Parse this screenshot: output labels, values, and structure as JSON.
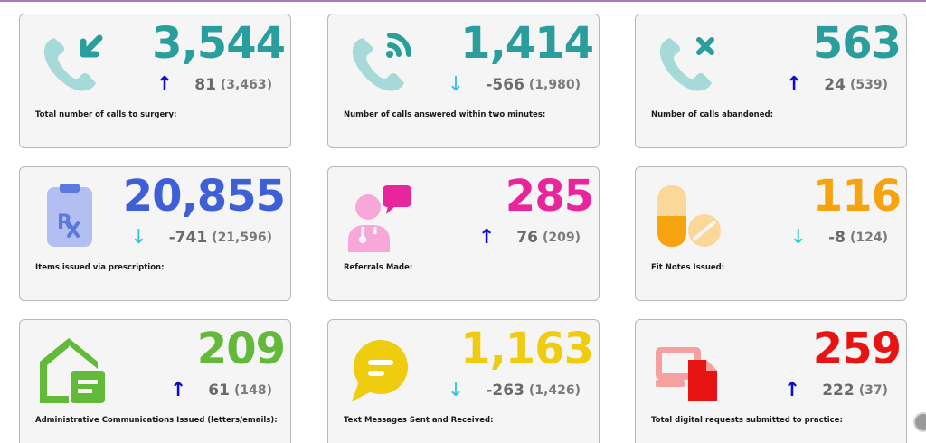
{
  "cards": [
    {
      "value": "3,544",
      "value_color": "#2a9d9d",
      "trend": "up",
      "delta": "81",
      "previous": "(3,463)",
      "label": "Total number of calls to surgery:",
      "icon": "incoming-call-icon"
    },
    {
      "value": "1,414",
      "value_color": "#2a9d9d",
      "trend": "down",
      "delta": "-566",
      "previous": "(1,980)",
      "label": "Number of calls answered within two minutes:",
      "icon": "call-answered-icon"
    },
    {
      "value": "563",
      "value_color": "#2a9d9d",
      "trend": "up",
      "delta": "24",
      "previous": "(539)",
      "label": "Number of calls abandoned:",
      "icon": "call-abandoned-icon"
    },
    {
      "value": "20,855",
      "value_color": "#3f5fd6",
      "trend": "down",
      "delta": "-741",
      "previous": "(21,596)",
      "label": "Items issued via prescription:",
      "icon": "prescription-clipboard-icon"
    },
    {
      "value": "285",
      "value_color": "#e8259a",
      "trend": "up",
      "delta": "76",
      "previous": "(209)",
      "label": "Referrals Made:",
      "icon": "doctor-referral-icon"
    },
    {
      "value": "116",
      "value_color": "#f5a30f",
      "trend": "down",
      "delta": "-8",
      "previous": "(124)",
      "label": "Fit Notes Issued:",
      "icon": "pills-icon"
    },
    {
      "value": "209",
      "value_color": "#62b93a",
      "trend": "up",
      "delta": "61",
      "previous": "(148)",
      "label": "Administrative Communications Issued (letters/emails):",
      "icon": "house-letter-icon"
    },
    {
      "value": "1,163",
      "value_color": "#f0cc0e",
      "trend": "down",
      "delta": "-263",
      "previous": "(1,426)",
      "label": "Text Messages Sent and Received:",
      "icon": "speech-bubble-icon"
    },
    {
      "value": "259",
      "value_color": "#e81313",
      "trend": "up",
      "delta": "222",
      "previous": "(37)",
      "label": "Total digital requests submitted to practice:",
      "icon": "digital-request-icon"
    }
  ]
}
